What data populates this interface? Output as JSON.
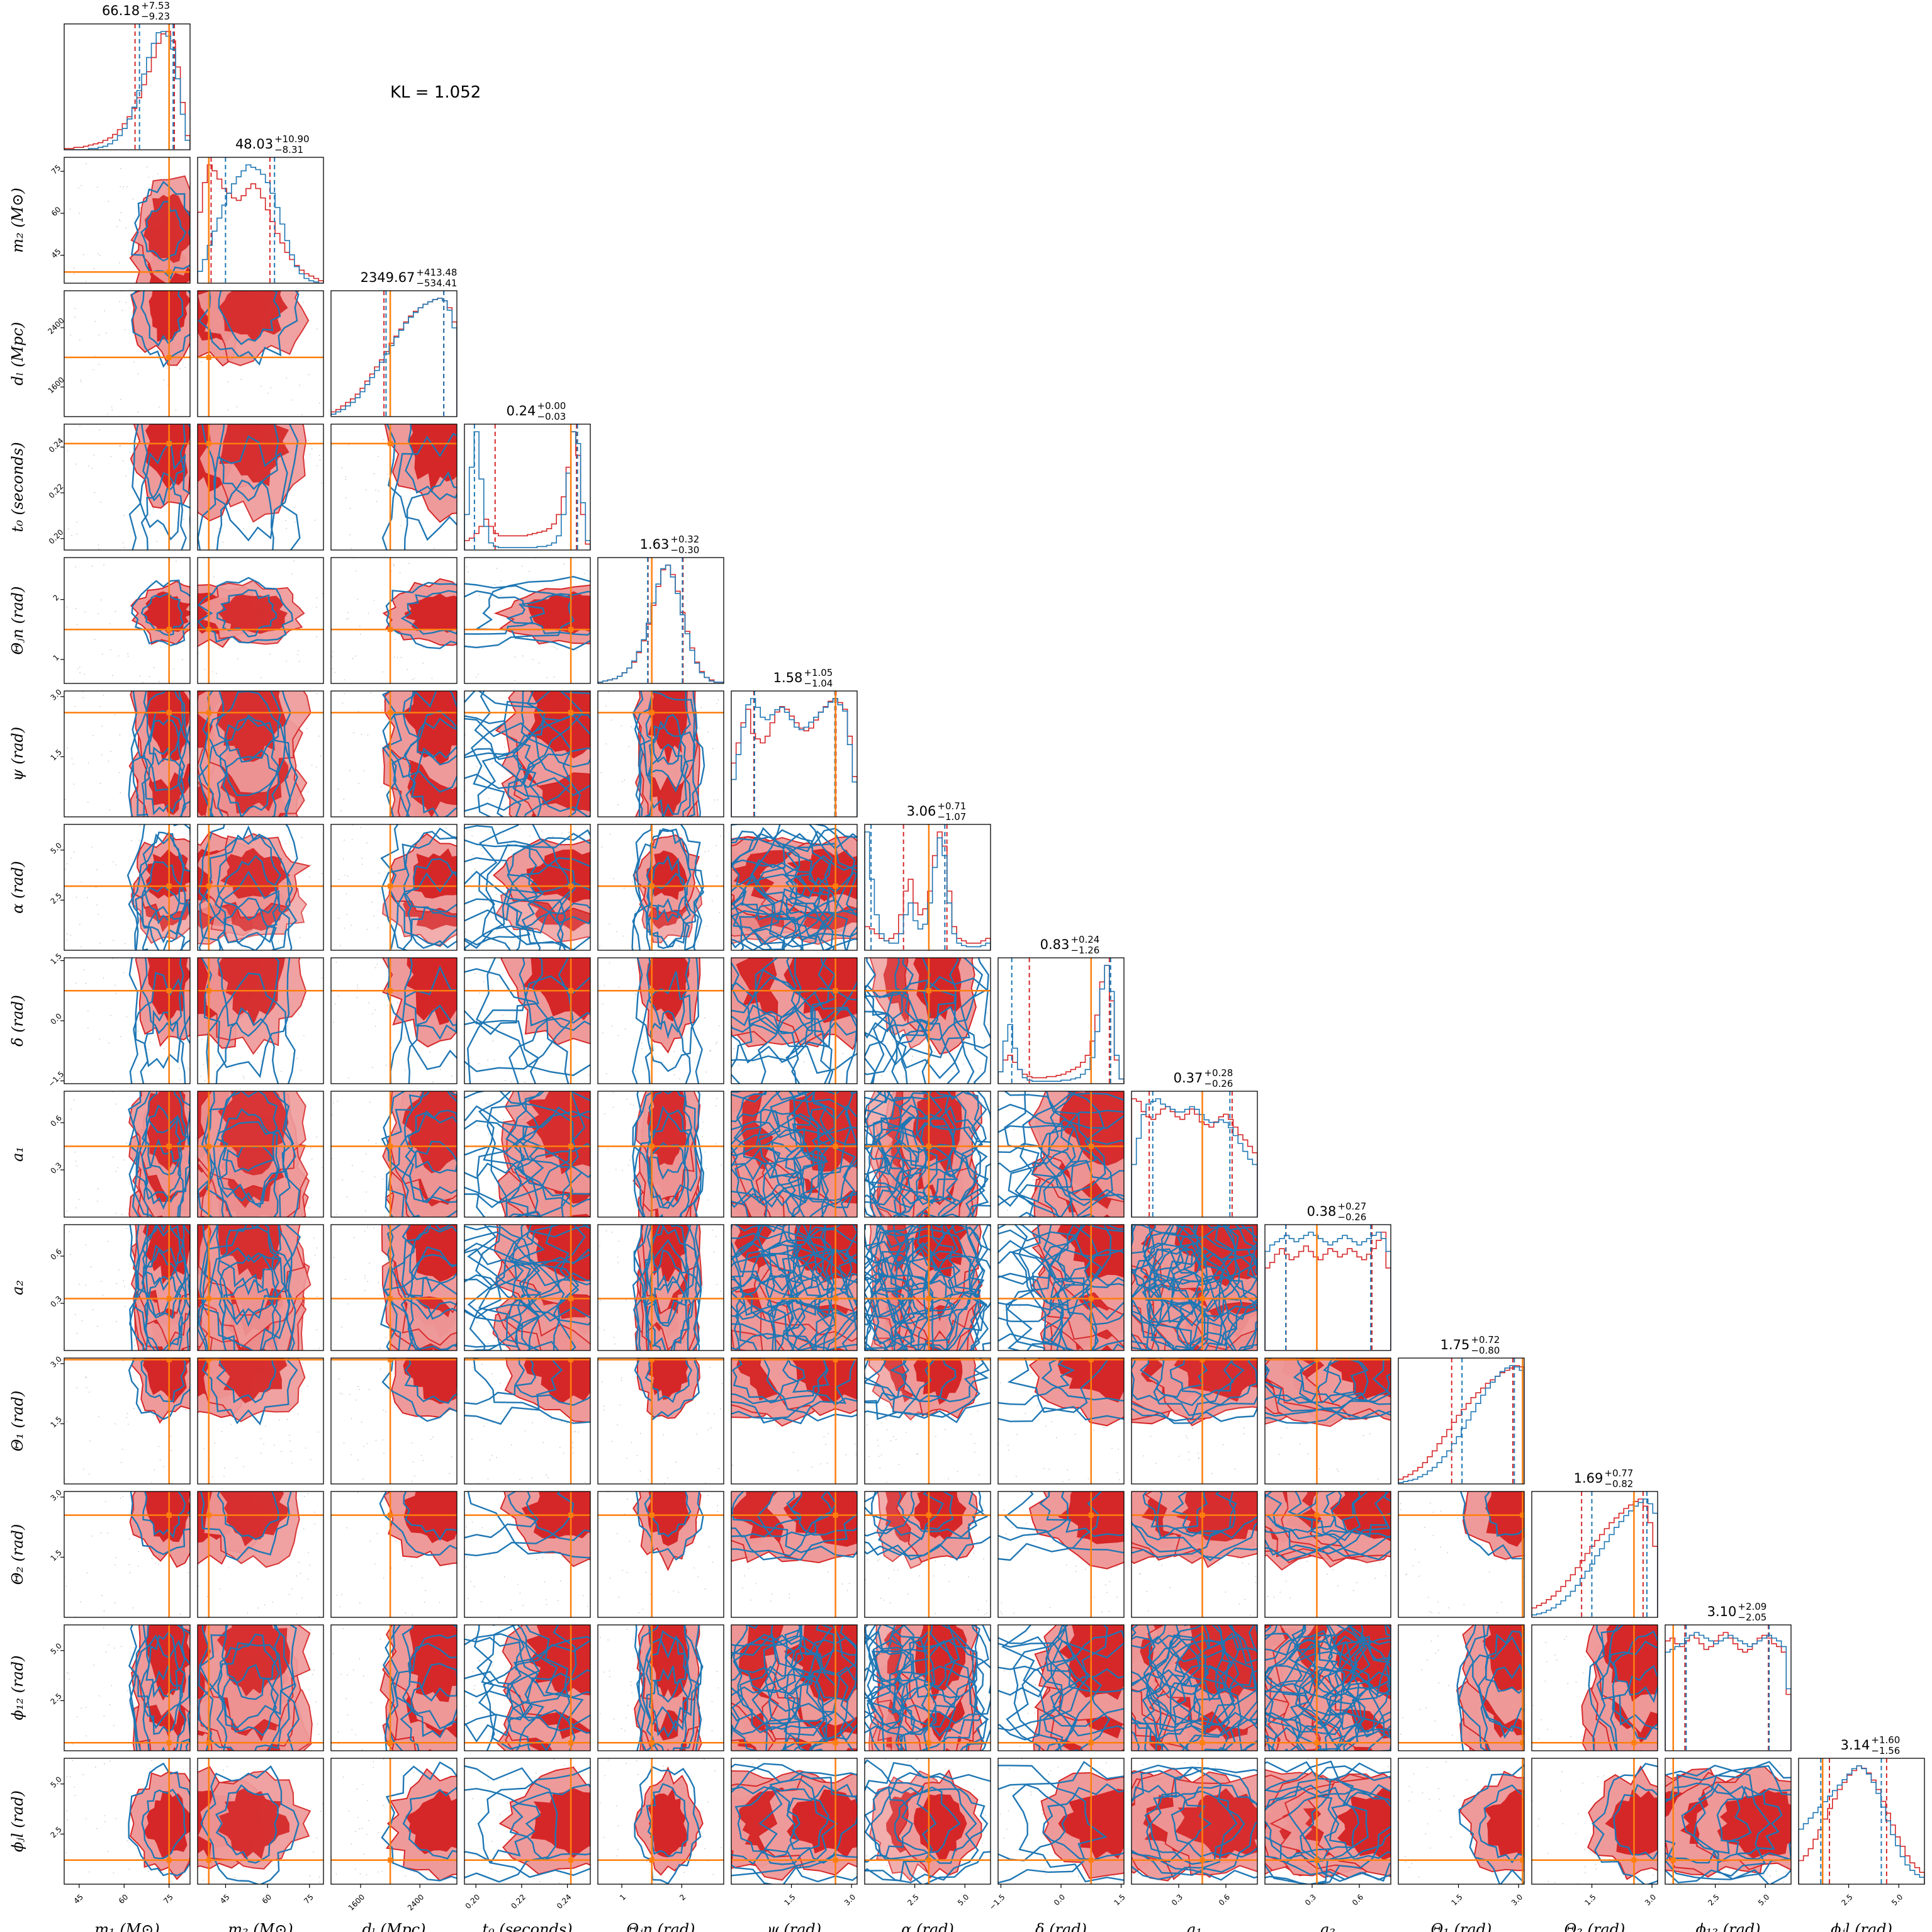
{
  "kl_text": "KL = 1.052",
  "chart_data": {
    "type": "corner",
    "title": "",
    "colors": {
      "series_a": "#d62728",
      "series_b": "#1f77b4",
      "truth": "#ff7f0e"
    },
    "parameters": [
      {
        "key": "m1",
        "label": "m₁ (M⊙)",
        "summary_median": "66.18",
        "summary_plus": "+7.53",
        "summary_minus": "−9.23",
        "range": [
          40,
          82
        ],
        "ticks": [
          "45",
          "60",
          "75"
        ],
        "tick_values": [
          45,
          60,
          75
        ],
        "truth": 75
      },
      {
        "key": "m2",
        "label": "m₂ (M⊙)",
        "summary_median": "48.03",
        "summary_plus": "+10.90",
        "summary_minus": "−8.31",
        "range": [
          35,
          80
        ],
        "ticks": [
          "45",
          "60",
          "75"
        ],
        "tick_values": [
          45,
          60,
          75
        ],
        "truth": 39
      },
      {
        "key": "dL",
        "label": "dₗ (Mpc)",
        "summary_median": "2349.67",
        "summary_plus": "+413.48",
        "summary_minus": "−534.41",
        "range": [
          1200,
          2900
        ],
        "ticks": [
          "1600",
          "2400"
        ],
        "tick_values": [
          1600,
          2400
        ],
        "truth": 2000
      },
      {
        "key": "t0",
        "label": "t₀ (seconds)",
        "summary_median": "0.24",
        "summary_plus": "+0.00",
        "summary_minus": "−0.03",
        "range": [
          0.195,
          0.25
        ],
        "ticks": [
          "0.20",
          "0.22",
          "0.24"
        ],
        "tick_values": [
          0.2,
          0.22,
          0.24
        ],
        "truth": 0.2415
      },
      {
        "key": "thjn",
        "label": "Θⱼn (rad)",
        "summary_median": "1.63",
        "summary_plus": "+0.32",
        "summary_minus": "−0.30",
        "range": [
          0.6,
          2.7
        ],
        "ticks": [
          "1",
          "2"
        ],
        "tick_values": [
          1,
          2
        ],
        "truth": 1.5
      },
      {
        "key": "psi",
        "label": "ψ (rad)",
        "summary_median": "1.58",
        "summary_plus": "+1.05",
        "summary_minus": "−1.04",
        "range": [
          0,
          3.14
        ],
        "ticks": [
          "1.5",
          "3.0"
        ],
        "tick_values": [
          1.5,
          3.0
        ],
        "truth": 2.6
      },
      {
        "key": "alpha",
        "label": "α (rad)",
        "summary_median": "3.06",
        "summary_plus": "+0.71",
        "summary_minus": "−1.07",
        "range": [
          0,
          6.28
        ],
        "ticks": [
          "2.5",
          "5.0"
        ],
        "tick_values": [
          2.5,
          5.0
        ],
        "truth": 3.2
      },
      {
        "key": "delta",
        "label": "δ (rad)",
        "summary_median": "0.83",
        "summary_plus": "+0.24",
        "summary_minus": "−1.26",
        "range": [
          -1.57,
          1.57
        ],
        "ticks": [
          "−1.5",
          "0.0",
          "1.5"
        ],
        "tick_values": [
          -1.5,
          0.0,
          1.5
        ],
        "truth": 0.75
      },
      {
        "key": "a1",
        "label": "a₁",
        "summary_median": "0.37",
        "summary_plus": "+0.28",
        "summary_minus": "−0.26",
        "range": [
          0,
          0.8
        ],
        "ticks": [
          "0.3",
          "0.6"
        ],
        "tick_values": [
          0.3,
          0.6
        ],
        "truth": 0.45
      },
      {
        "key": "a2",
        "label": "a₂",
        "summary_median": "0.38",
        "summary_plus": "+0.27",
        "summary_minus": "−0.26",
        "range": [
          0,
          0.8
        ],
        "ticks": [
          "0.3",
          "0.6"
        ],
        "tick_values": [
          0.3,
          0.6
        ],
        "truth": 0.33
      },
      {
        "key": "th1",
        "label": "Θ₁ (rad)",
        "summary_median": "1.75",
        "summary_plus": "+0.72",
        "summary_minus": "−0.80",
        "range": [
          0,
          3.14
        ],
        "ticks": [
          "1.5",
          "3.0"
        ],
        "tick_values": [
          1.5,
          3.0
        ],
        "truth": 3.1
      },
      {
        "key": "th2",
        "label": "Θ₂ (rad)",
        "summary_median": "1.69",
        "summary_plus": "+0.77",
        "summary_minus": "−0.82",
        "range": [
          0,
          3.14
        ],
        "ticks": [
          "1.5",
          "3.0"
        ],
        "tick_values": [
          1.5,
          3.0
        ],
        "truth": 2.55
      },
      {
        "key": "phi12",
        "label": "ϕ₁₂ (rad)",
        "summary_median": "3.10",
        "summary_plus": "+2.09",
        "summary_minus": "−2.05",
        "range": [
          0,
          6.28
        ],
        "ticks": [
          "2.5",
          "5.0"
        ],
        "tick_values": [
          2.5,
          5.0
        ],
        "truth": 0.4
      },
      {
        "key": "phijl",
        "label": "ϕⱼl (rad)",
        "summary_median": "3.14",
        "summary_plus": "+1.60",
        "summary_minus": "−1.56",
        "range": [
          0,
          6.28
        ],
        "ticks": [
          "2.5",
          "5.0"
        ],
        "tick_values": [
          2.5,
          5.0
        ],
        "truth": 1.2
      }
    ],
    "marginals": {
      "m1": {
        "red": [
          1,
          1,
          2,
          2,
          3,
          4,
          5,
          6,
          8,
          10,
          13,
          17,
          22,
          28,
          35,
          44,
          55,
          66,
          78,
          90,
          98,
          100,
          92,
          70,
          40,
          12
        ],
        "blue": [
          0,
          0,
          0,
          0,
          0,
          1,
          1,
          2,
          3,
          5,
          8,
          12,
          18,
          26,
          36,
          50,
          64,
          78,
          90,
          99,
          100,
          96,
          85,
          60,
          30,
          8
        ]
      },
      "m2": {
        "red": [
          60,
          85,
          100,
          95,
          88,
          80,
          76,
          72,
          70,
          74,
          80,
          84,
          80,
          72,
          62,
          52,
          42,
          34,
          26,
          20,
          15,
          11,
          8,
          6,
          4,
          2
        ],
        "blue": [
          10,
          20,
          32,
          44,
          55,
          66,
          76,
          84,
          90,
          95,
          100,
          98,
          96,
          92,
          85,
          76,
          64,
          50,
          36,
          24,
          14,
          8,
          4,
          2,
          1,
          0
        ]
      },
      "dL": {
        "red": [
          4,
          6,
          9,
          12,
          15,
          19,
          24,
          30,
          36,
          42,
          48,
          55,
          62,
          68,
          74,
          80,
          85,
          89,
          92,
          95,
          97,
          99,
          100,
          98,
          92,
          80
        ],
        "blue": [
          2,
          4,
          6,
          9,
          12,
          16,
          21,
          27,
          33,
          39,
          46,
          53,
          60,
          67,
          73,
          79,
          84,
          88,
          92,
          95,
          97,
          99,
          100,
          98,
          90,
          75
        ]
      },
      "t0": {
        "red": [
          8,
          10,
          14,
          20,
          26,
          20,
          14,
          12,
          12,
          12,
          12,
          12,
          12,
          13,
          14,
          15,
          16,
          18,
          22,
          30,
          45,
          70,
          100,
          80,
          30,
          5
        ],
        "blue": [
          30,
          70,
          100,
          60,
          20,
          6,
          3,
          2,
          2,
          2,
          2,
          2,
          2,
          2,
          2,
          3,
          3,
          4,
          6,
          12,
          30,
          65,
          100,
          90,
          40,
          8
        ]
      },
      "thjn": {
        "red": [
          1,
          2,
          3,
          4,
          6,
          9,
          13,
          18,
          26,
          36,
          50,
          66,
          82,
          96,
          100,
          92,
          78,
          60,
          44,
          30,
          18,
          10,
          5,
          3,
          1,
          1
        ],
        "blue": [
          1,
          2,
          3,
          4,
          6,
          9,
          13,
          19,
          27,
          37,
          51,
          68,
          84,
          97,
          100,
          90,
          76,
          58,
          42,
          28,
          17,
          9,
          5,
          2,
          1,
          1
        ]
      },
      "psi": {
        "red": [
          40,
          55,
          70,
          80,
          62,
          58,
          55,
          60,
          70,
          78,
          82,
          80,
          75,
          70,
          66,
          64,
          66,
          72,
          78,
          82,
          86,
          88,
          85,
          80,
          60,
          30
        ],
        "blue": [
          30,
          50,
          72,
          90,
          95,
          88,
          80,
          78,
          82,
          86,
          88,
          84,
          78,
          72,
          70,
          72,
          76,
          80,
          84,
          88,
          92,
          95,
          90,
          85,
          58,
          28
        ]
      },
      "alpha": {
        "red": [
          20,
          18,
          14,
          10,
          8,
          10,
          14,
          30,
          50,
          60,
          40,
          30,
          35,
          50,
          80,
          100,
          88,
          50,
          20,
          10,
          8,
          6,
          6,
          6,
          8,
          10
        ],
        "blue": [
          100,
          60,
          30,
          14,
          8,
          6,
          6,
          14,
          30,
          40,
          25,
          18,
          22,
          40,
          70,
          95,
          80,
          40,
          14,
          6,
          4,
          3,
          3,
          3,
          4,
          6
        ]
      },
      "delta": {
        "red": [
          10,
          20,
          24,
          18,
          12,
          8,
          6,
          5,
          5,
          5,
          6,
          6,
          7,
          8,
          10,
          12,
          14,
          18,
          24,
          36,
          58,
          86,
          100,
          70,
          20,
          4
        ],
        "blue": [
          10,
          36,
          50,
          30,
          12,
          5,
          3,
          2,
          2,
          2,
          2,
          2,
          2,
          3,
          3,
          4,
          5,
          8,
          12,
          22,
          44,
          80,
          100,
          78,
          24,
          4
        ]
      },
      "a1": {
        "red": [
          92,
          90,
          82,
          78,
          76,
          80,
          84,
          86,
          82,
          78,
          76,
          80,
          84,
          80,
          74,
          72,
          70,
          74,
          78,
          80,
          76,
          70,
          64,
          60,
          55,
          50
        ],
        "blue": [
          40,
          60,
          78,
          86,
          88,
          90,
          86,
          84,
          82,
          80,
          80,
          82,
          84,
          82,
          78,
          74,
          72,
          72,
          74,
          72,
          68,
          62,
          56,
          50,
          44,
          40
        ]
      },
      "a2": {
        "red": [
          60,
          64,
          70,
          74,
          70,
          66,
          68,
          72,
          76,
          72,
          68,
          66,
          70,
          74,
          72,
          68,
          70,
          74,
          72,
          68,
          66,
          70,
          74,
          80,
          86,
          60
        ],
        "blue": [
          62,
          66,
          68,
          70,
          72,
          70,
          68,
          70,
          72,
          74,
          72,
          70,
          68,
          66,
          68,
          70,
          72,
          70,
          68,
          66,
          68,
          70,
          72,
          74,
          70,
          62
        ]
      },
      "th1": {
        "red": [
          4,
          6,
          8,
          11,
          14,
          18,
          23,
          28,
          34,
          40,
          46,
          52,
          58,
          63,
          68,
          73,
          77,
          81,
          85,
          88,
          91,
          94,
          96,
          98,
          100,
          99
        ],
        "blue": [
          1,
          2,
          3,
          4,
          6,
          8,
          11,
          14,
          18,
          23,
          28,
          34,
          40,
          47,
          54,
          61,
          68,
          75,
          81,
          86,
          91,
          95,
          98,
          100,
          99,
          96
        ]
      },
      "th2": {
        "red": [
          8,
          10,
          12,
          15,
          18,
          22,
          26,
          31,
          36,
          42,
          48,
          54,
          60,
          65,
          70,
          75,
          80,
          84,
          88,
          92,
          95,
          98,
          100,
          94,
          80,
          60
        ],
        "blue": [
          2,
          3,
          4,
          6,
          8,
          11,
          14,
          18,
          22,
          27,
          33,
          39,
          45,
          52,
          58,
          64,
          70,
          76,
          81,
          86,
          90,
          94,
          97,
          100,
          96,
          88
        ]
      },
      "phi12": {
        "red": [
          78,
          80,
          76,
          74,
          78,
          82,
          80,
          76,
          72,
          74,
          78,
          82,
          84,
          80,
          76,
          72,
          70,
          72,
          76,
          80,
          82,
          80,
          76,
          74,
          70,
          40
        ],
        "blue": [
          70,
          72,
          74,
          76,
          80,
          82,
          84,
          82,
          80,
          78,
          76,
          78,
          80,
          82,
          80,
          78,
          76,
          74,
          76,
          78,
          80,
          82,
          80,
          78,
          74,
          44
        ]
      },
      "phijl": {
        "red": [
          20,
          24,
          30,
          38,
          46,
          55,
          64,
          72,
          80,
          86,
          92,
          96,
          100,
          98,
          94,
          88,
          80,
          70,
          60,
          50,
          40,
          32,
          24,
          18,
          14,
          10
        ],
        "blue": [
          40,
          44,
          48,
          52,
          56,
          60,
          64,
          68,
          72,
          76,
          80,
          84,
          86,
          84,
          80,
          74,
          66,
          56,
          46,
          36,
          28,
          20,
          14,
          10,
          7,
          5
        ]
      }
    }
  }
}
